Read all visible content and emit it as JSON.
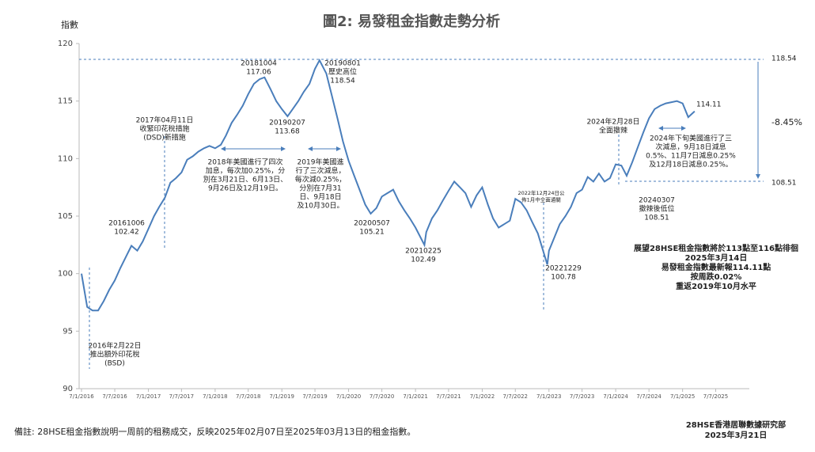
{
  "chart_data": {
    "type": "line",
    "title": "圖2: 易發租金指數走勢分析",
    "ylabel": "指數",
    "color": "#4a7ebb",
    "ylim": [
      90,
      120
    ],
    "yticks": [
      90,
      95,
      100,
      105,
      110,
      115,
      120
    ],
    "xlim": [
      "2016-01-07",
      "2026-01-07"
    ],
    "xticks": [
      {
        "value": "2016-01-07",
        "label": "7/1/2016"
      },
      {
        "value": "2016-07-07",
        "label": "7/7/2016"
      },
      {
        "value": "2017-01-07",
        "label": "7/1/2017"
      },
      {
        "value": "2017-07-07",
        "label": "7/7/2017"
      },
      {
        "value": "2018-01-07",
        "label": "7/1/2018"
      },
      {
        "value": "2018-07-07",
        "label": "7/7/2018"
      },
      {
        "value": "2019-01-07",
        "label": "7/1/2019"
      },
      {
        "value": "2019-07-07",
        "label": "7/7/2019"
      },
      {
        "value": "2020-01-07",
        "label": "7/1/2020"
      },
      {
        "value": "2020-07-07",
        "label": "7/7/2020"
      },
      {
        "value": "2021-01-07",
        "label": "7/1/2021"
      },
      {
        "value": "2021-07-07",
        "label": "7/7/2021"
      },
      {
        "value": "2022-01-07",
        "label": "7/1/2022"
      },
      {
        "value": "2022-07-07",
        "label": "7/7/2022"
      },
      {
        "value": "2023-01-07",
        "label": "7/1/2023"
      },
      {
        "value": "2023-07-07",
        "label": "7/7/2023"
      },
      {
        "value": "2024-01-07",
        "label": "7/1/2024"
      },
      {
        "value": "2024-07-07",
        "label": "7/7/2024"
      },
      {
        "value": "2025-01-07",
        "label": "7/1/2025"
      },
      {
        "value": "2025-07-07",
        "label": "7/7/2025"
      }
    ],
    "x": [
      "2016-01-07",
      "2016-02-07",
      "2016-03-07",
      "2016-04-07",
      "2016-05-07",
      "2016-06-07",
      "2016-07-07",
      "2016-08-07",
      "2016-09-07",
      "2016-10-06",
      "2016-11-07",
      "2016-12-07",
      "2017-01-07",
      "2017-02-07",
      "2017-03-07",
      "2017-04-07",
      "2017-05-07",
      "2017-06-07",
      "2017-07-07",
      "2017-08-07",
      "2017-09-07",
      "2017-10-07",
      "2017-11-07",
      "2017-12-07",
      "2018-01-07",
      "2018-02-07",
      "2018-03-07",
      "2018-04-07",
      "2018-05-07",
      "2018-06-07",
      "2018-07-07",
      "2018-08-07",
      "2018-09-07",
      "2018-10-04",
      "2018-11-07",
      "2018-12-07",
      "2019-01-07",
      "2019-02-07",
      "2019-03-07",
      "2019-04-07",
      "2019-05-07",
      "2019-06-07",
      "2019-07-07",
      "2019-08-01",
      "2019-09-07",
      "2019-10-07",
      "2019-11-07",
      "2019-12-07",
      "2020-01-07",
      "2020-02-07",
      "2020-03-07",
      "2020-04-07",
      "2020-05-07",
      "2020-06-07",
      "2020-07-07",
      "2020-08-07",
      "2020-09-07",
      "2020-10-07",
      "2020-11-07",
      "2020-12-07",
      "2021-01-07",
      "2021-02-25",
      "2021-03-07",
      "2021-04-07",
      "2021-05-07",
      "2021-06-07",
      "2021-07-07",
      "2021-08-07",
      "2021-09-07",
      "2021-10-07",
      "2021-11-07",
      "2021-12-07",
      "2022-01-07",
      "2022-02-07",
      "2022-03-07",
      "2022-04-07",
      "2022-05-07",
      "2022-06-07",
      "2022-07-07",
      "2022-08-07",
      "2022-09-07",
      "2022-10-07",
      "2022-11-07",
      "2022-12-29",
      "2023-01-07",
      "2023-02-07",
      "2023-03-07",
      "2023-04-07",
      "2023-05-07",
      "2023-06-07",
      "2023-07-07",
      "2023-08-07",
      "2023-09-07",
      "2023-10-07",
      "2023-11-07",
      "2023-12-07",
      "2024-01-07",
      "2024-02-07",
      "2024-03-07",
      "2024-04-07",
      "2024-05-07",
      "2024-06-07",
      "2024-07-07",
      "2024-08-07",
      "2024-09-07",
      "2024-10-07",
      "2024-11-07",
      "2024-12-07",
      "2025-01-07",
      "2025-02-07",
      "2025-03-14"
    ],
    "values": [
      100.0,
      97.1,
      96.8,
      96.8,
      97.6,
      98.6,
      99.4,
      100.5,
      101.5,
      102.42,
      102.0,
      102.8,
      103.9,
      105.0,
      105.8,
      106.6,
      107.9,
      108.3,
      108.8,
      109.9,
      110.2,
      110.6,
      110.9,
      111.1,
      110.9,
      111.2,
      112.0,
      113.1,
      113.8,
      114.6,
      115.6,
      116.5,
      116.9,
      117.06,
      116.0,
      115.0,
      114.3,
      113.68,
      114.3,
      115.0,
      115.8,
      116.5,
      117.8,
      118.54,
      117.4,
      115.5,
      113.5,
      111.5,
      109.8,
      108.5,
      107.3,
      106.0,
      105.21,
      105.7,
      106.7,
      107.0,
      107.3,
      106.3,
      105.5,
      104.8,
      104.0,
      102.49,
      103.6,
      104.8,
      105.5,
      106.4,
      107.2,
      108.0,
      107.5,
      107.0,
      105.8,
      106.8,
      107.5,
      106.0,
      104.8,
      104.0,
      104.3,
      104.6,
      106.5,
      106.2,
      105.5,
      104.5,
      103.5,
      100.78,
      102.0,
      103.2,
      104.3,
      105.0,
      105.8,
      107.0,
      107.3,
      108.4,
      108.0,
      108.7,
      108.0,
      108.3,
      109.5,
      109.4,
      108.51,
      109.7,
      111.0,
      112.3,
      113.5,
      114.3,
      114.6,
      114.8,
      114.9,
      115.0,
      114.8,
      113.6,
      114.11
    ],
    "annotations": [
      {
        "lines": [
          "2016年2月22日",
          "推出額外印花稅",
          "(BSD)"
        ]
      },
      {
        "lines": [
          "20161006",
          "102.42"
        ]
      },
      {
        "lines": [
          "2017年04月11日",
          "收緊印花稅措施",
          "(DSD)新措施"
        ]
      },
      {
        "lines": [
          "20181004",
          "117.06"
        ]
      },
      {
        "lines": [
          "2018年美國進行了四次",
          "加息，每次加0.25%，分",
          "別在3月21日、6月13日、",
          "9月26日及12月19日。"
        ]
      },
      {
        "lines": [
          "20190207",
          "113.68"
        ]
      },
      {
        "lines": [
          "20190801",
          "歷史高位",
          "118.54"
        ]
      },
      {
        "lines": [
          "2019年美國進",
          "行了三次減息，",
          "每次減0.25%，",
          "分別在7月31",
          "日、9月18日",
          "及10月30日。"
        ]
      },
      {
        "lines": [
          "20200507",
          "105.21"
        ]
      },
      {
        "lines": [
          "20210225",
          "102.49"
        ]
      },
      {
        "lines": [
          "2022年12月24日公",
          "佈1月中全面通關"
        ]
      },
      {
        "lines": [
          "20221229",
          "100.78"
        ]
      },
      {
        "lines": [
          "2024年2月28日",
          "全面撤辣"
        ]
      },
      {
        "lines": [
          "20240307",
          "撤辣後低位",
          "108.51"
        ]
      },
      {
        "lines": [
          "114.11"
        ]
      },
      {
        "lines": [
          "2024年下旬美國進行了三",
          "次減息，9月18日減息",
          "0.5%、11月7日減息0.25%",
          "及12月18日減息0.25%。"
        ]
      },
      {
        "lines": [
          "展望28HSE租金指數將於113點至116點徘徊",
          "2025年3月14日",
          "易發租金指數最新報114.11點",
          "按周跌0.02%",
          "重返2019年10月水平"
        ]
      },
      {
        "lines": [
          "118.54"
        ]
      },
      {
        "lines": [
          "108.51"
        ]
      },
      {
        "lines": [
          "-8.45%"
        ]
      }
    ],
    "footnote": "備註: 28HSE租金指數說明一周前的租務成交，反映2025年02月07日至2025年03月13日的租金指數。",
    "source": [
      "28HSE香港居聯數據研究部",
      "2025年3月21日"
    ]
  }
}
